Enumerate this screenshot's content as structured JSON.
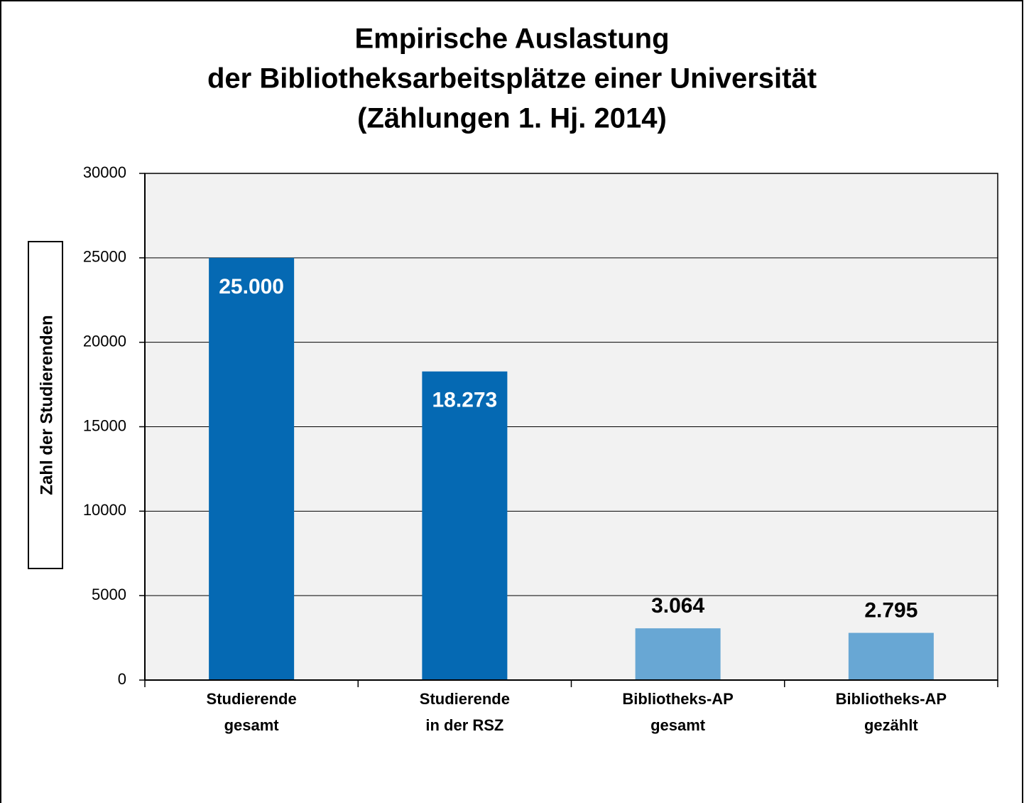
{
  "chart_data": {
    "type": "bar",
    "title": [
      "Empirische Auslastung",
      "der Bibliotheksarbeitsplätze einer Universität",
      "(Zählungen 1. Hj. 2014)"
    ],
    "ylabel": "Zahl der Studierenden",
    "categories": [
      [
        "Studierende",
        "gesamt"
      ],
      [
        "Studierende",
        "in der RSZ"
      ],
      [
        "Bibliotheks-AP",
        "gesamt"
      ],
      [
        "Bibliotheks-AP",
        "gezählt"
      ]
    ],
    "values": [
      25000,
      18273,
      3064,
      2795
    ],
    "value_labels": [
      "25.000",
      "18.273",
      "3.064",
      "2.795"
    ],
    "colors": [
      "#0569b3",
      "#0569b3",
      "#68a7d4",
      "#68a7d4"
    ],
    "ylim": [
      0,
      30000
    ],
    "yticks": [
      0,
      5000,
      10000,
      15000,
      20000,
      25000,
      30000
    ],
    "grid": true
  }
}
